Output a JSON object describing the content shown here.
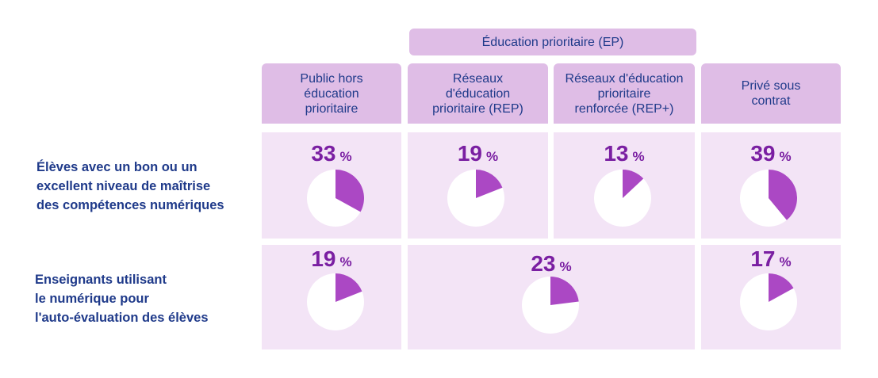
{
  "colors": {
    "slice": "#ab48c4",
    "pie_bg": "#ffffff",
    "header_bg": "#dfbde6",
    "cell_bg": "#f3e4f6",
    "value": "#7a1fa2",
    "label": "#1f3a8a"
  },
  "group_header": "Éducation prioritaire (EP)",
  "columns": [
    {
      "label_lines": [
        "Public hors",
        "éducation",
        "prioritaire"
      ]
    },
    {
      "label_lines": [
        "Réseaux",
        "d'éducation",
        "prioritaire (REP)"
      ]
    },
    {
      "label_lines": [
        "Réseaux d'éducation",
        "prioritaire",
        "renforcée (REP+)"
      ]
    },
    {
      "label_lines": [
        "Privé sous",
        "contrat"
      ]
    }
  ],
  "rows": [
    {
      "label_lines": [
        "Élèves avec un bon ou un",
        "excellent niveau de maîtrise",
        "des compétences numériques"
      ]
    },
    {
      "label_lines": [
        "Enseignants utilisant",
        "le numérique pour",
        "l'auto-évaluation des élèves"
      ]
    }
  ],
  "chart_data": {
    "type": "pie",
    "unit": "%",
    "categories": [
      "Public hors éducation prioritaire",
      "Réseaux d'éducation prioritaire (REP)",
      "Réseaux d'éducation prioritaire renforcée (REP+)",
      "Privé sous contrat"
    ],
    "series": [
      {
        "name": "Élèves avec un bon ou un excellent niveau de maîtrise des compétences numériques",
        "values": [
          33,
          19,
          13,
          39
        ]
      },
      {
        "name": "Enseignants utilisant le numérique pour l'auto-évaluation des élèves",
        "values": [
          19,
          23,
          23,
          17
        ],
        "merged_categories": [
          [
            0
          ],
          [
            1,
            2
          ],
          [
            3
          ]
        ],
        "merged_values": [
          19,
          23,
          17
        ]
      }
    ]
  }
}
